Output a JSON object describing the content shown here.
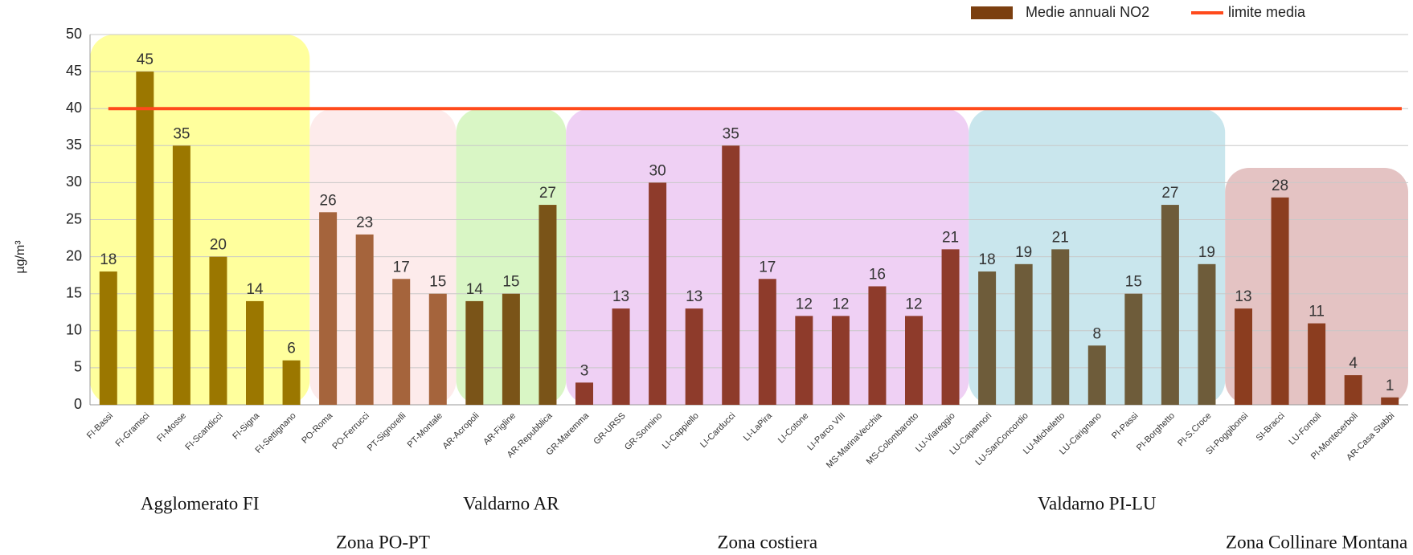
{
  "chart_data": {
    "type": "bar",
    "ylabel": "µg/m³",
    "categories": [
      "FI-Bassi",
      "FI-Gramsci",
      "FI-Mosse",
      "FI-Scandicci",
      "FI-Signa",
      "FI-Settignano",
      "PO-Roma",
      "PO-Ferrucci",
      "PT-Signorelli",
      "PT-Montale",
      "AR-Acropoli",
      "AR-Figline",
      "AR-Repubblica",
      "GR-Maremma",
      "GR-URSS",
      "GR-Sonnino",
      "LI-Cappiello",
      "LI-Carducci",
      "LI-LaPira",
      "LI-Cotone",
      "LI-Parco VIII",
      "MS-MarinaVecchia",
      "MS-Colombarotto",
      "LU-Viareggio",
      "LU-Capannori",
      "LU-SanConcordio",
      "LU-Micheletto",
      "LU-Carignano",
      "PI-Passi",
      "PI-Borghetto",
      "PI-S.Croce",
      "SI-Poggibonsi",
      "SI-Bracci",
      "LU-Fornoli",
      "PI-Montecerboli",
      "AR-Casa Stabbi"
    ],
    "series": [
      {
        "name": "Medie annuali NO2",
        "color": "#7b3f10",
        "values": [
          18,
          45,
          35,
          20,
          14,
          6,
          26,
          23,
          17,
          15,
          14,
          15,
          27,
          3,
          13,
          30,
          13,
          35,
          17,
          12,
          12,
          16,
          12,
          21,
          18,
          19,
          21,
          8,
          15,
          27,
          19,
          13,
          28,
          11,
          4,
          1
        ],
        "colors": [
          "#9b7700",
          "#9b7700",
          "#9b7700",
          "#9b7700",
          "#9b7700",
          "#9b7700",
          "#a5643c",
          "#a5643c",
          "#a5643c",
          "#a5643c",
          "#7a5418",
          "#7a5418",
          "#7a5418",
          "#8e3b2b",
          "#8e3b2b",
          "#8e3b2b",
          "#8e3b2b",
          "#8e3b2b",
          "#8e3b2b",
          "#8e3b2b",
          "#8e3b2b",
          "#8e3b2b",
          "#8e3b2b",
          "#8e3b2b",
          "#6e5c3a",
          "#6e5c3a",
          "#6e5c3a",
          "#6e5c3a",
          "#6e5c3a",
          "#6e5c3a",
          "#6e5c3a",
          "#8b3d1f",
          "#8b3d1f",
          "#8b3d1f",
          "#8b3d1f",
          "#8b3d1f"
        ]
      },
      {
        "name": "limite media",
        "type": "line",
        "color": "#ff4a1c",
        "value": 40
      }
    ],
    "zones": [
      {
        "name": "Agglomerato FI",
        "color": "#ffff8c"
      },
      {
        "name": "Zona PO-PT",
        "color": "#fde8e8"
      },
      {
        "name": "Valdarno AR",
        "color": "#d2f5bb"
      },
      {
        "name": "Zona costiera",
        "color": "#ecc8f2"
      },
      {
        "name": "Valdarno PI-LU",
        "color": "#c0e2ea"
      },
      {
        "name": "Zona Collinare Montana",
        "color": "#dfb9b9"
      }
    ],
    "ylim": [
      0,
      50
    ],
    "yticks": [
      0,
      5,
      10,
      15,
      20,
      25,
      30,
      35,
      40,
      45,
      50
    ],
    "grid": true,
    "legend": "top-right"
  }
}
